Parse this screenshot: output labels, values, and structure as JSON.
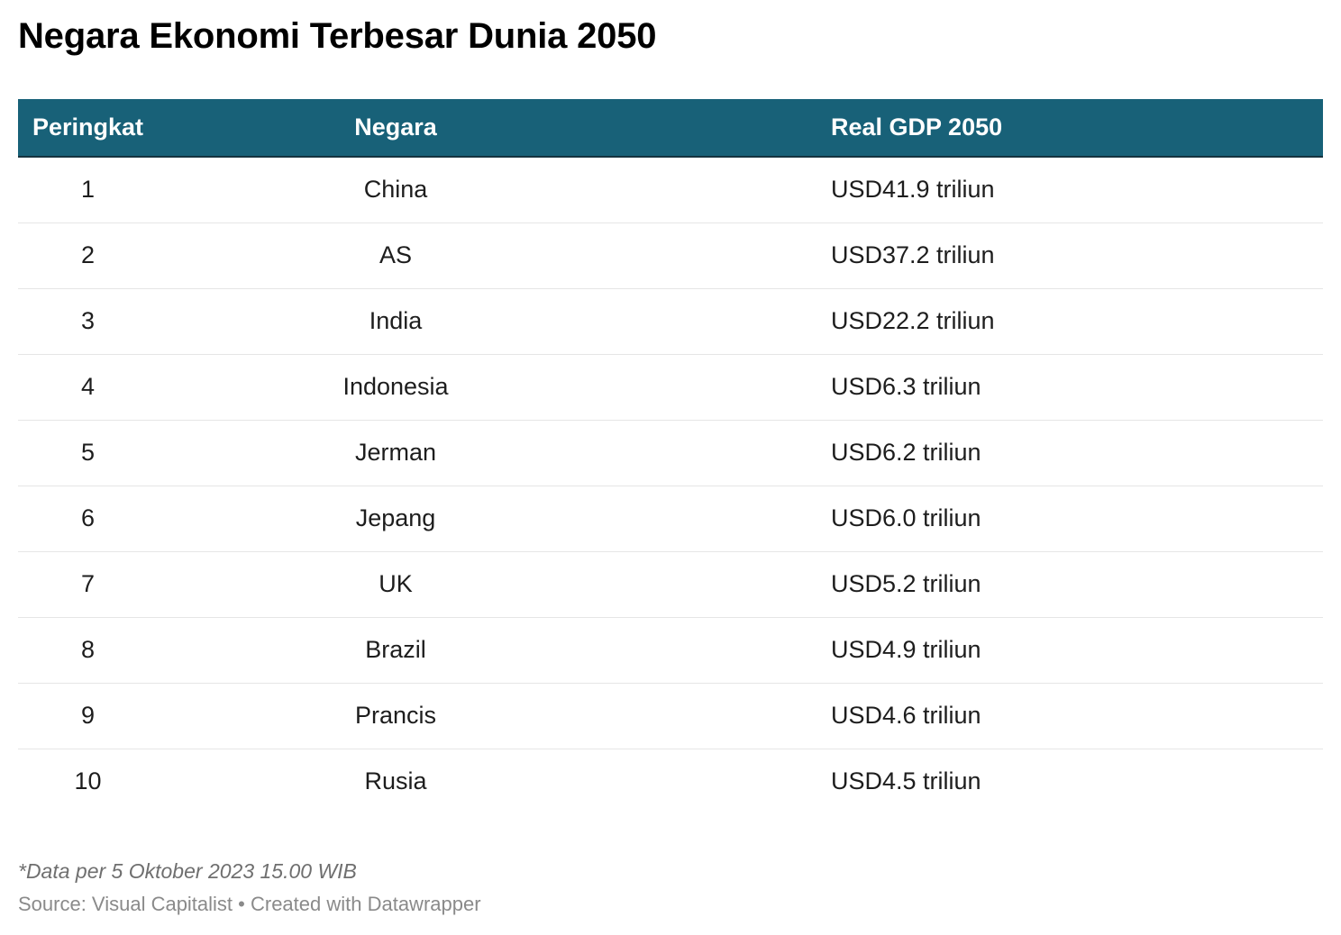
{
  "chart_data": {
    "type": "table",
    "title": "Negara Ekonomi Terbesar Dunia 2050",
    "columns": [
      "Peringkat",
      "Negara",
      "Real GDP 2050"
    ],
    "rows": [
      {
        "rank": "1",
        "country": "China",
        "gdp": "USD41.9 triliun"
      },
      {
        "rank": "2",
        "country": "AS",
        "gdp": "USD37.2 triliun"
      },
      {
        "rank": "3",
        "country": "India",
        "gdp": "USD22.2 triliun"
      },
      {
        "rank": "4",
        "country": "Indonesia",
        "gdp": "USD6.3 triliun"
      },
      {
        "rank": "5",
        "country": "Jerman",
        "gdp": "USD6.2 triliun"
      },
      {
        "rank": "6",
        "country": "Jepang",
        "gdp": "USD6.0 triliun"
      },
      {
        "rank": "7",
        "country": "UK",
        "gdp": "USD5.2 triliun"
      },
      {
        "rank": "8",
        "country": "Brazil",
        "gdp": "USD4.9 triliun"
      },
      {
        "rank": "9",
        "country": "Prancis",
        "gdp": "USD4.6 triliun"
      },
      {
        "rank": "10",
        "country": "Rusia",
        "gdp": "USD4.5 triliun"
      }
    ],
    "note": "*Data per 5 Oktober 2023 15.00 WIB",
    "source": "Source: Visual Capitalist • Created with Datawrapper"
  },
  "colors": {
    "header_background": "#186178",
    "header_text": "#ffffff",
    "row_divider": "#e6e6e6"
  }
}
